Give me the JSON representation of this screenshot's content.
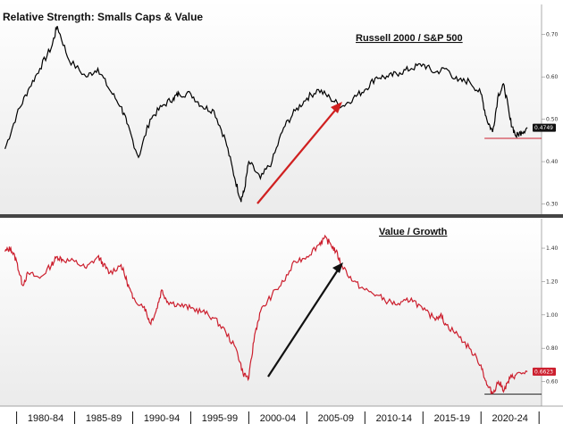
{
  "chart_title": "Relative Strength: Smalls Caps & Value",
  "x_axis": {
    "tick_labels": [
      "1980-84",
      "1985-89",
      "1990-94",
      "1995-99",
      "2000-04",
      "2005-09",
      "2010-14",
      "2015-19",
      "2020-24"
    ]
  },
  "chart_data": [
    {
      "type": "line",
      "title": "Russell 2000 / S&P 500",
      "color": "#000000",
      "ylim": [
        0.28,
        0.75
      ],
      "yticks": [
        "0.70",
        "0.60",
        "0.50",
        "0.40",
        "0.30"
      ],
      "last_value_label": "0.4749",
      "reference_level": 0.455,
      "x": [
        1979.0,
        1980.0,
        1981.0,
        1982.0,
        1983.0,
        1983.5,
        1984.5,
        1986.0,
        1987.0,
        1988.0,
        1989.0,
        1989.5,
        1990.5,
        1991.5,
        1992.5,
        1993.5,
        1994.0,
        1995.0,
        1996.0,
        1997.0,
        1998.0,
        1998.8,
        1999.3,
        1999.6,
        2000.0,
        2001.0,
        2002.0,
        2003.0,
        2004.0,
        2005.0,
        2006.0,
        2007.0,
        2008.0,
        2009.0,
        2010.0,
        2011.0,
        2012.0,
        2013.0,
        2014.0,
        2015.0,
        2016.0,
        2017.0,
        2018.0,
        2019.0,
        2020.0,
        2020.5,
        2021.0,
        2021.5,
        2022.0,
        2022.5,
        2023.0,
        2023.5,
        2024.0
      ],
      "y": [
        0.43,
        0.51,
        0.57,
        0.62,
        0.67,
        0.72,
        0.64,
        0.6,
        0.62,
        0.57,
        0.53,
        0.49,
        0.41,
        0.5,
        0.53,
        0.55,
        0.56,
        0.56,
        0.53,
        0.52,
        0.45,
        0.36,
        0.31,
        0.33,
        0.4,
        0.36,
        0.4,
        0.48,
        0.52,
        0.55,
        0.57,
        0.55,
        0.53,
        0.55,
        0.57,
        0.6,
        0.6,
        0.61,
        0.62,
        0.63,
        0.61,
        0.62,
        0.59,
        0.59,
        0.56,
        0.5,
        0.47,
        0.56,
        0.58,
        0.5,
        0.46,
        0.47,
        0.48
      ]
    },
    {
      "type": "line",
      "title": "Value / Growth",
      "color": "#cc1f2e",
      "ylim": [
        0.48,
        1.55
      ],
      "yticks": [
        "1.40",
        "1.20",
        "1.00",
        "0.80",
        "0.60"
      ],
      "last_value_label": "0.6623",
      "reference_level": 0.525,
      "x": [
        1979.0,
        1979.5,
        1980.0,
        1980.5,
        1981.0,
        1982.0,
        1983.0,
        1983.5,
        1984.0,
        1985.0,
        1986.0,
        1987.0,
        1987.5,
        1988.0,
        1989.0,
        1989.5,
        1990.0,
        1991.0,
        1991.5,
        1992.0,
        1992.5,
        1993.0,
        1994.0,
        1995.0,
        1996.0,
        1997.0,
        1998.0,
        1999.0,
        1999.5,
        2000.0,
        2000.5,
        2001.0,
        2002.0,
        2003.0,
        2004.0,
        2005.0,
        2006.0,
        2006.5,
        2007.0,
        2007.5,
        2008.0,
        2009.0,
        2010.0,
        2011.0,
        2012.0,
        2013.0,
        2014.0,
        2015.0,
        2016.0,
        2016.5,
        2017.0,
        2018.0,
        2019.0,
        2020.0,
        2020.5,
        2021.0,
        2021.5,
        2022.0,
        2022.5,
        2023.0,
        2024.0
      ],
      "y": [
        1.38,
        1.4,
        1.32,
        1.18,
        1.25,
        1.22,
        1.3,
        1.35,
        1.33,
        1.32,
        1.28,
        1.35,
        1.3,
        1.25,
        1.3,
        1.2,
        1.1,
        1.05,
        0.95,
        1.02,
        1.15,
        1.08,
        1.06,
        1.04,
        1.02,
        0.98,
        0.9,
        0.78,
        0.65,
        0.62,
        0.88,
        1.02,
        1.12,
        1.2,
        1.32,
        1.35,
        1.42,
        1.46,
        1.43,
        1.38,
        1.3,
        1.2,
        1.15,
        1.12,
        1.08,
        1.06,
        1.1,
        1.03,
        0.98,
        1.0,
        0.94,
        0.88,
        0.8,
        0.7,
        0.58,
        0.53,
        0.6,
        0.55,
        0.62,
        0.64,
        0.66
      ]
    }
  ]
}
